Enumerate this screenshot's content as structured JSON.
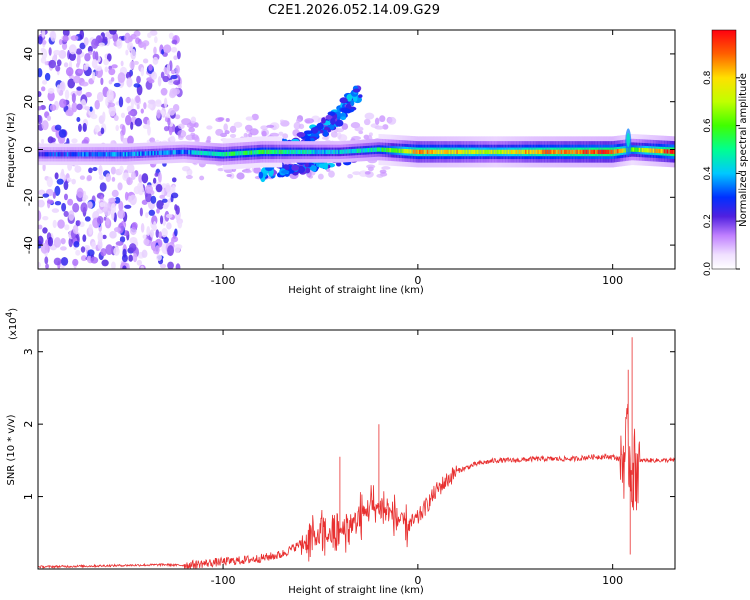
{
  "title": "C2E1.2026.052.14.09.G29",
  "chart_data": [
    {
      "type": "heatmap",
      "xlabel": "Height of straight line (km)",
      "ylabel": "Frequency (Hz)",
      "xlim": [
        -195,
        132
      ],
      "ylim": [
        -50,
        50
      ],
      "x_ticks": [
        -100,
        0,
        100
      ],
      "y_ticks": [
        -40,
        -20,
        0,
        20,
        40
      ],
      "colorbar": {
        "label": "Normalized spectral amplitude",
        "range": [
          0,
          1
        ],
        "ticks": [
          "0.0",
          "0.2",
          "0.4",
          "0.6",
          "0.8"
        ],
        "tick_values": [
          0.0,
          0.2,
          0.4,
          0.6,
          0.8
        ],
        "colors": [
          "#ffffff",
          "#e8d0ff",
          "#8040e0",
          "#1030ff",
          "#00c0ff",
          "#00ff80",
          "#60ff00",
          "#d0ff00",
          "#ffff00",
          "#ff8000",
          "#ff0000"
        ]
      },
      "ridge": {
        "description_points": [
          [
            -190,
            -2
          ],
          [
            -150,
            -2
          ],
          [
            -120,
            -1
          ],
          [
            -100,
            -2
          ],
          [
            -80,
            -1
          ],
          [
            -60,
            -1
          ],
          [
            -40,
            -1
          ],
          [
            -20,
            0
          ],
          [
            0,
            -1
          ],
          [
            20,
            -1
          ],
          [
            40,
            -1
          ],
          [
            60,
            -1
          ],
          [
            80,
            -1
          ],
          [
            100,
            -1
          ],
          [
            110,
            0
          ],
          [
            132,
            -1
          ]
        ],
        "amplitude_points": [
          [
            -190,
            0.3
          ],
          [
            -150,
            0.35
          ],
          [
            -120,
            0.35
          ],
          [
            -100,
            0.5
          ],
          [
            -80,
            0.55
          ],
          [
            -60,
            0.45
          ],
          [
            -40,
            0.4
          ],
          [
            -20,
            0.5
          ],
          [
            0,
            0.85
          ],
          [
            20,
            0.8
          ],
          [
            40,
            0.7
          ],
          [
            60,
            0.85
          ],
          [
            80,
            0.9
          ],
          [
            100,
            0.95
          ],
          [
            110,
            0.6
          ],
          [
            132,
            1.0
          ]
        ]
      },
      "secondary_branches": [
        {
          "points": [
            [
              -70,
              0
            ],
            [
              -55,
              5
            ],
            [
              -40,
              15
            ],
            [
              -30,
              25
            ]
          ],
          "amplitude": 0.3
        },
        {
          "points": [
            [
              -80,
              -10
            ],
            [
              -60,
              -7
            ],
            [
              -40,
              -4
            ],
            [
              -25,
              0
            ]
          ],
          "amplitude": 0.3
        }
      ],
      "scatter_region": {
        "x_range": [
          -195,
          -122
        ],
        "y_range": [
          -50,
          50
        ]
      }
    },
    {
      "type": "line",
      "xlabel": "Height of straight line (km)",
      "ylabel": "SNR (10 * v/v)",
      "y_multiplier": "(x10",
      "y_multiplier_exp": "4",
      "y_multiplier_close": ")",
      "xlim": [
        -195,
        132
      ],
      "ylim": [
        0,
        3.3
      ],
      "x_ticks": [
        -100,
        0,
        100
      ],
      "y_ticks": [
        1,
        2,
        3
      ],
      "color": "#e83030",
      "series": [
        {
          "x": [
            -195,
            -170,
            -150,
            -130,
            -120,
            -100,
            -90,
            -80,
            -70,
            -60,
            -50,
            -40,
            -35,
            -30,
            -25,
            -20,
            -15,
            -10,
            -5,
            0,
            10,
            20,
            30,
            40,
            50,
            60,
            80,
            90,
            100,
            105,
            108,
            110,
            112,
            115,
            120,
            132
          ],
          "y": [
            0.03,
            0.04,
            0.05,
            0.06,
            0.05,
            0.1,
            0.12,
            0.15,
            0.2,
            0.35,
            0.45,
            0.5,
            0.6,
            0.7,
            0.85,
            0.85,
            0.8,
            0.7,
            0.6,
            0.7,
            1.1,
            1.35,
            1.45,
            1.5,
            1.5,
            1.52,
            1.52,
            1.55,
            1.55,
            1.5,
            1.7,
            1.3,
            1.4,
            1.5,
            1.5,
            1.5
          ]
        }
      ],
      "spikes": [
        {
          "x": -20,
          "y": 2.0
        },
        {
          "x": -40,
          "y": 1.55
        },
        {
          "x": 108,
          "y": 2.75
        },
        {
          "x": 110,
          "y": 3.2
        },
        {
          "x": 109,
          "y": 0.2
        }
      ]
    }
  ]
}
